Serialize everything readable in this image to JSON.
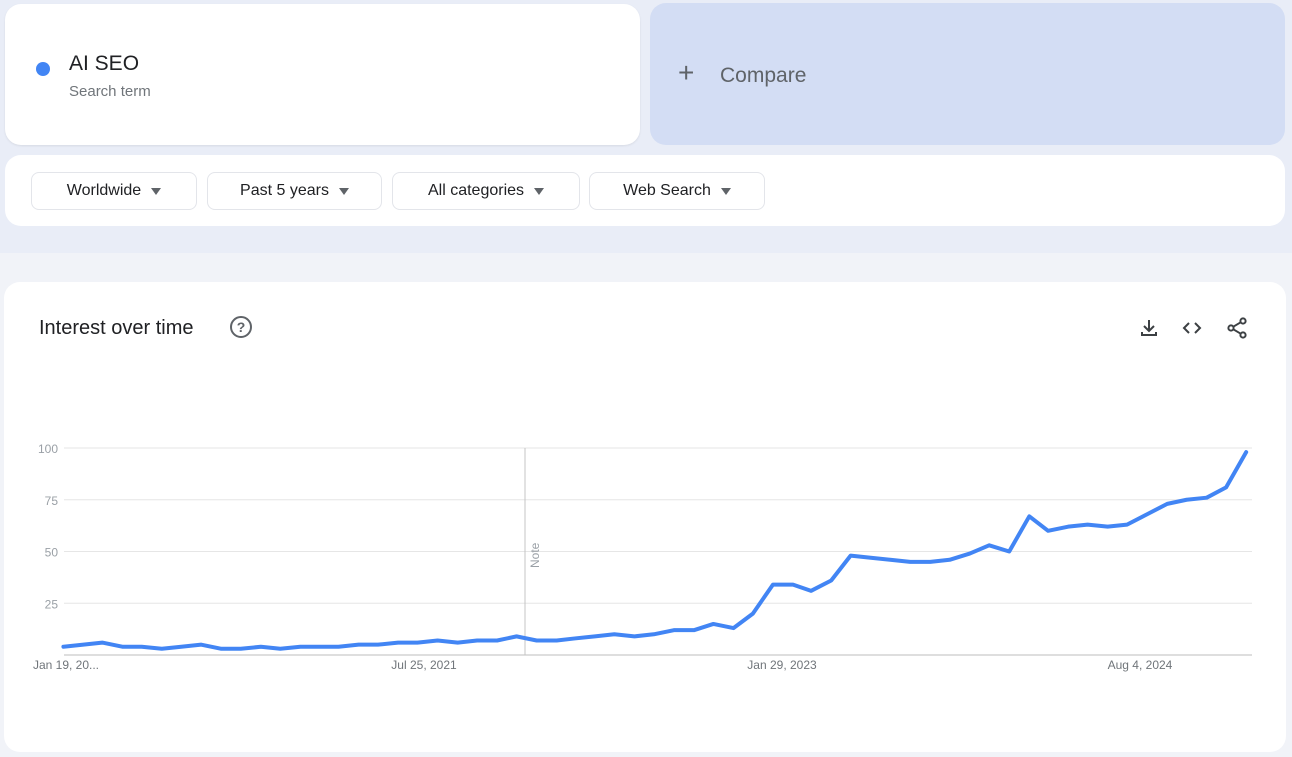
{
  "search_term": {
    "name": "AI SEO",
    "subtitle": "Search term",
    "color": "#4285f4"
  },
  "compare": {
    "icon": "plus-icon",
    "label": "Compare"
  },
  "filters": [
    {
      "label": "Worldwide"
    },
    {
      "label": "Past 5 years"
    },
    {
      "label": "All categories"
    },
    {
      "label": "Web Search"
    }
  ],
  "panel": {
    "title": "Interest over time",
    "help_icon": "?",
    "tools": [
      "download-icon",
      "embed-code-icon",
      "share-icon"
    ]
  },
  "chart_data": {
    "type": "line",
    "title": "",
    "xlabel": "",
    "ylabel": "",
    "ylim": [
      0,
      100
    ],
    "yticks": [
      "100",
      "75",
      "50",
      "25"
    ],
    "xtick_labels": [
      "Jan 19, 20...",
      "Jul 25, 2021",
      "Jan 29, 2023",
      "Aug 4, 2024"
    ],
    "xtick_dates": [
      "2020-01-19",
      "2021-07-25",
      "2023-01-29",
      "2024-08-04"
    ],
    "annotation": {
      "label": "Note",
      "date": "2022-01"
    },
    "grid": true,
    "line_color": "#4285f4",
    "series": [
      {
        "name": "AI SEO",
        "x": [
          "2020-01",
          "2020-02",
          "2020-03",
          "2020-04",
          "2020-05",
          "2020-06",
          "2020-07",
          "2020-08",
          "2020-09",
          "2020-10",
          "2020-11",
          "2020-12",
          "2021-01",
          "2021-02",
          "2021-03",
          "2021-04",
          "2021-05",
          "2021-06",
          "2021-07",
          "2021-08",
          "2021-09",
          "2021-10",
          "2021-11",
          "2021-12",
          "2022-01",
          "2022-02",
          "2022-03",
          "2022-04",
          "2022-05",
          "2022-06",
          "2022-07",
          "2022-08",
          "2022-09",
          "2022-10",
          "2022-11",
          "2022-12",
          "2023-01",
          "2023-02",
          "2023-03",
          "2023-04",
          "2023-05",
          "2023-06",
          "2023-07",
          "2023-08",
          "2023-09",
          "2023-10",
          "2023-11",
          "2023-12",
          "2024-01",
          "2024-02",
          "2024-03",
          "2024-04",
          "2024-05",
          "2024-06",
          "2024-07",
          "2024-08",
          "2024-09",
          "2024-10",
          "2024-11",
          "2024-12",
          "2025-01"
        ],
        "values": [
          4,
          5,
          6,
          4,
          4,
          3,
          4,
          5,
          3,
          3,
          4,
          3,
          4,
          4,
          4,
          5,
          5,
          6,
          6,
          7,
          6,
          7,
          7,
          9,
          7,
          7,
          8,
          9,
          10,
          9,
          10,
          12,
          12,
          15,
          13,
          20,
          34,
          34,
          31,
          36,
          48,
          47,
          46,
          45,
          45,
          46,
          49,
          53,
          50,
          67,
          60,
          62,
          63,
          62,
          63,
          68,
          73,
          75,
          76,
          81,
          98
        ]
      }
    ]
  }
}
